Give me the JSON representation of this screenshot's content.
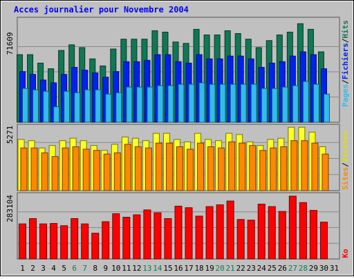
{
  "chart_data": [
    {
      "type": "bar",
      "title": "Acces journalier pour Novembre 2004",
      "ymax_label": "71609",
      "ylim": [
        0,
        71609
      ],
      "grid": true,
      "series_labels": [
        "Pages",
        "Fichiers",
        "Hits"
      ],
      "separator": "/",
      "colors": {
        "Pages": "#33bbee",
        "Fichiers": "#0022ee",
        "Hits": "#117755"
      },
      "categories": [
        "1",
        "2",
        "3",
        "4",
        "5",
        "6",
        "7",
        "8",
        "9",
        "10",
        "11",
        "12",
        "13",
        "14",
        "15",
        "16",
        "17",
        "18",
        "19",
        "20",
        "21",
        "22",
        "23",
        "24",
        "25",
        "26",
        "27",
        "28",
        "29",
        "30",
        "31"
      ],
      "series": [
        {
          "name": "Hits",
          "values": [
            48000,
            48000,
            42000,
            38000,
            51000,
            55000,
            53000,
            45000,
            40000,
            52000,
            59000,
            59000,
            59000,
            65000,
            64000,
            57000,
            56000,
            66000,
            62000,
            62000,
            65000,
            63000,
            59000,
            53000,
            58000,
            62000,
            64000,
            70000,
            66000,
            50000,
            null
          ]
        },
        {
          "name": "Fichiers",
          "values": [
            36000,
            34000,
            30000,
            28000,
            34000,
            39000,
            37000,
            35000,
            32000,
            36000,
            43000,
            43000,
            44000,
            48000,
            48000,
            43000,
            42000,
            48000,
            45000,
            45000,
            47000,
            47000,
            45000,
            39000,
            42000,
            43000,
            47000,
            50000,
            48000,
            38000,
            null
          ]
        },
        {
          "name": "Pages",
          "values": [
            24000,
            23000,
            22000,
            11000,
            22000,
            21000,
            23000,
            23000,
            20000,
            21000,
            25000,
            25000,
            25000,
            26000,
            26000,
            27000,
            27000,
            28000,
            27000,
            27000,
            27000,
            27000,
            27000,
            24000,
            24000,
            25000,
            26000,
            29000,
            27000,
            20000,
            null
          ]
        }
      ]
    },
    {
      "type": "bar",
      "ymax_label": "5271",
      "ylim": [
        0,
        5271
      ],
      "grid": true,
      "series_labels": [
        "Sites",
        "Visites"
      ],
      "separator": "/",
      "colors": {
        "Visites": "#ffff22",
        "Sites": "#ff8800"
      },
      "categories": [
        "1",
        "2",
        "3",
        "4",
        "5",
        "6",
        "7",
        "8",
        "9",
        "10",
        "11",
        "12",
        "13",
        "14",
        "15",
        "16",
        "17",
        "18",
        "19",
        "20",
        "21",
        "22",
        "23",
        "24",
        "25",
        "26",
        "27",
        "28",
        "29",
        "30",
        "31"
      ],
      "series": [
        {
          "name": "Visites",
          "values": [
            4200,
            4100,
            3500,
            3700,
            4100,
            4300,
            4100,
            3700,
            3300,
            3800,
            4400,
            4300,
            4100,
            4700,
            4700,
            4200,
            4000,
            4700,
            4200,
            4100,
            4700,
            4600,
            4000,
            3700,
            4200,
            4300,
            5200,
            5200,
            4800,
            3600,
            null
          ]
        },
        {
          "name": "Sites",
          "values": [
            3500,
            3500,
            3100,
            2800,
            3500,
            3600,
            3400,
            3300,
            3000,
            3100,
            3800,
            3600,
            3500,
            3900,
            3900,
            3600,
            3400,
            3900,
            3600,
            3500,
            4000,
            3900,
            3700,
            3300,
            3500,
            3600,
            4100,
            4100,
            3900,
            3000,
            null
          ]
        }
      ]
    },
    {
      "type": "bar",
      "ymax_label": "283104",
      "ylim": [
        0,
        283104
      ],
      "grid": true,
      "series_labels": [
        "Ko"
      ],
      "colors": {
        "Ko": "#ff0000"
      },
      "categories": [
        "1",
        "2",
        "3",
        "4",
        "5",
        "6",
        "7",
        "8",
        "9",
        "10",
        "11",
        "12",
        "13",
        "14",
        "15",
        "16",
        "17",
        "18",
        "19",
        "20",
        "21",
        "22",
        "23",
        "24",
        "25",
        "26",
        "27",
        "28",
        "29",
        "30",
        "31"
      ],
      "weekend_label_color": "#117755",
      "weekend_days": [
        "6",
        "7",
        "13",
        "14",
        "20",
        "21",
        "27",
        "28"
      ],
      "series": [
        {
          "name": "Ko",
          "values": [
            158000,
            182000,
            158000,
            160000,
            150000,
            182000,
            158000,
            116000,
            168000,
            204000,
            188000,
            199000,
            221000,
            208000,
            182000,
            238000,
            231000,
            193000,
            236000,
            244000,
            261000,
            178000,
            175000,
            247000,
            236000,
            214000,
            283104,
            254000,
            219000,
            166000,
            null
          ]
        }
      ]
    }
  ]
}
